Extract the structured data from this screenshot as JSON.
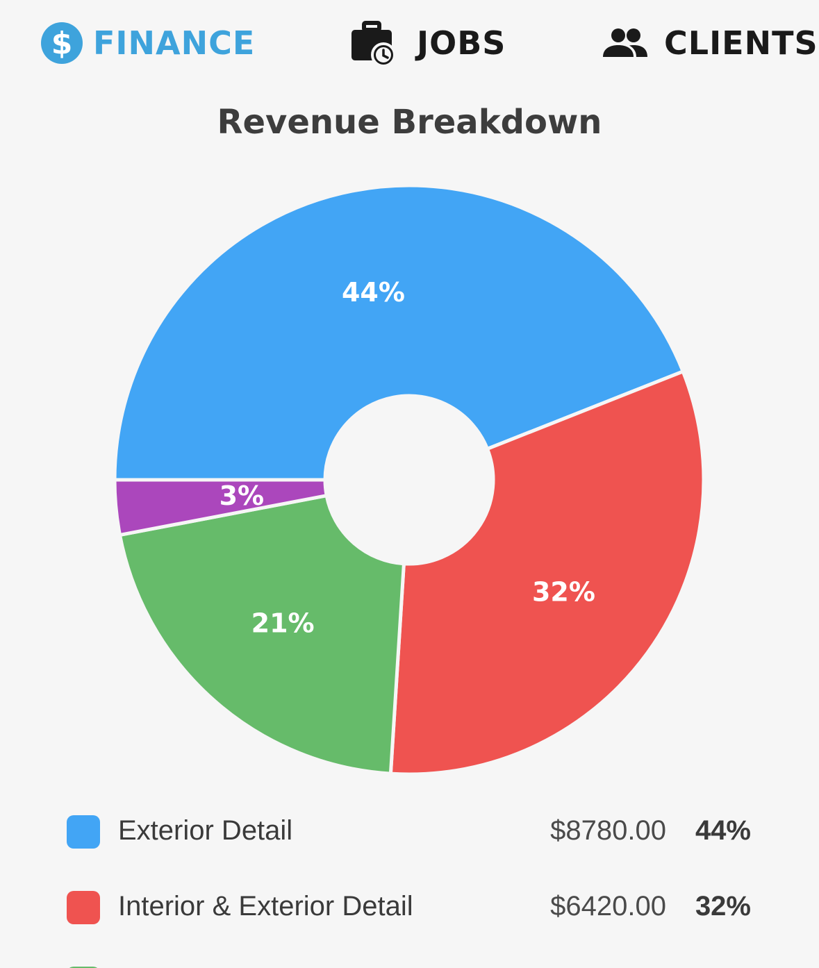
{
  "tabs": [
    {
      "label": "FINANCE",
      "icon": "dollar-circle-icon",
      "active": true,
      "color": "#3ea3dc"
    },
    {
      "label": "JOBS",
      "icon": "briefcase-clock-icon",
      "active": false,
      "color": "#1a1a1a"
    },
    {
      "label": "CLIENTS",
      "icon": "people-icon",
      "active": false,
      "color": "#1a1a1a"
    }
  ],
  "chart_data": {
    "type": "pie",
    "variant": "donut",
    "title": "Revenue Breakdown",
    "slices": [
      {
        "name": "Exterior Detail",
        "amount": "$8780.00",
        "percent": "44%",
        "value": 44,
        "color": "#42a5f5"
      },
      {
        "name": "Interior & Exterior Detail",
        "amount": "$6420.00",
        "percent": "32%",
        "value": 32,
        "color": "#ef5350"
      },
      {
        "name": "",
        "amount": "",
        "percent": "21%",
        "value": 21,
        "color": "#66bb6a"
      },
      {
        "name": "",
        "amount": "",
        "percent": "3%",
        "value": 3,
        "color": "#ab47bc"
      }
    ]
  },
  "legend": {
    "items": [
      {
        "name": "Exterior Detail",
        "amount": "$8780.00",
        "percent": "44%",
        "color": "#42a5f5"
      },
      {
        "name": "Interior & Exterior Detail",
        "amount": "$6420.00",
        "percent": "32%",
        "color": "#ef5350"
      },
      {
        "name": "",
        "amount": "",
        "percent": "",
        "color": "#66bb6a"
      }
    ]
  }
}
